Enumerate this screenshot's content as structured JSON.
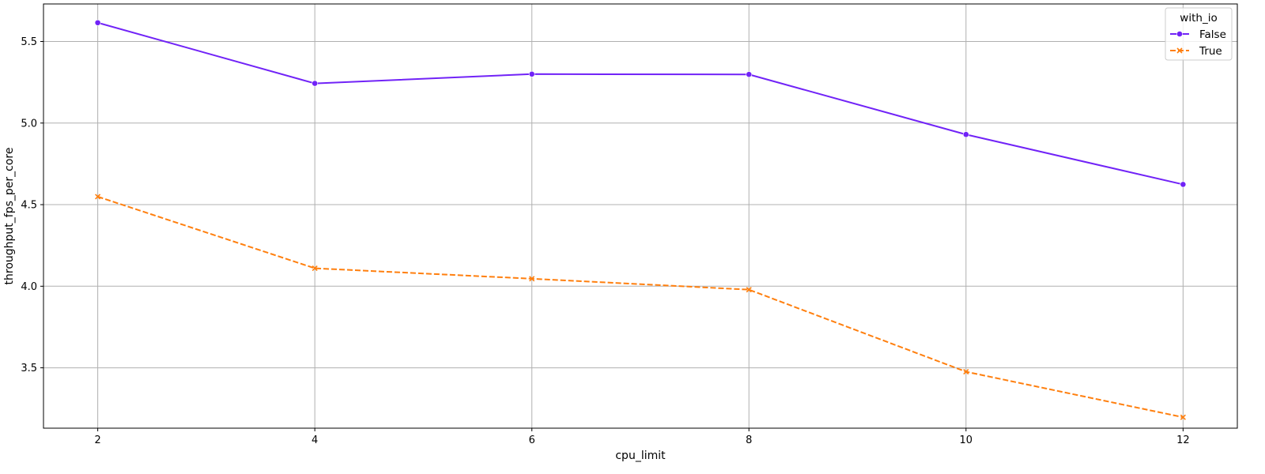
{
  "chart_data": {
    "type": "line",
    "title": "",
    "xlabel": "cpu_limit",
    "ylabel": "throughput_fps_per_core",
    "x": [
      2,
      4,
      6,
      8,
      10,
      12
    ],
    "x_ticks": [
      2,
      4,
      6,
      8,
      10,
      12
    ],
    "y_ticks": [
      3.5,
      4.0,
      4.5,
      5.0,
      5.5
    ],
    "y_tick_labels": [
      "3.5",
      "4.0",
      "4.5",
      "5.0",
      "5.5"
    ],
    "xlim": [
      1.5,
      12.5
    ],
    "ylim": [
      3.13,
      5.73
    ],
    "grid": true,
    "legend": {
      "title": "with_io",
      "placement": "top-right"
    },
    "series": [
      {
        "name": "False",
        "values": [
          5.615,
          5.243,
          5.3,
          5.298,
          4.93,
          4.624
        ],
        "color": "#7123f7",
        "marker": "circle",
        "dash": "solid"
      },
      {
        "name": "True",
        "values": [
          4.549,
          4.11,
          4.046,
          3.979,
          3.476,
          3.197
        ],
        "color": "#ff7f0e",
        "marker": "x",
        "dash": "dashed"
      }
    ]
  }
}
